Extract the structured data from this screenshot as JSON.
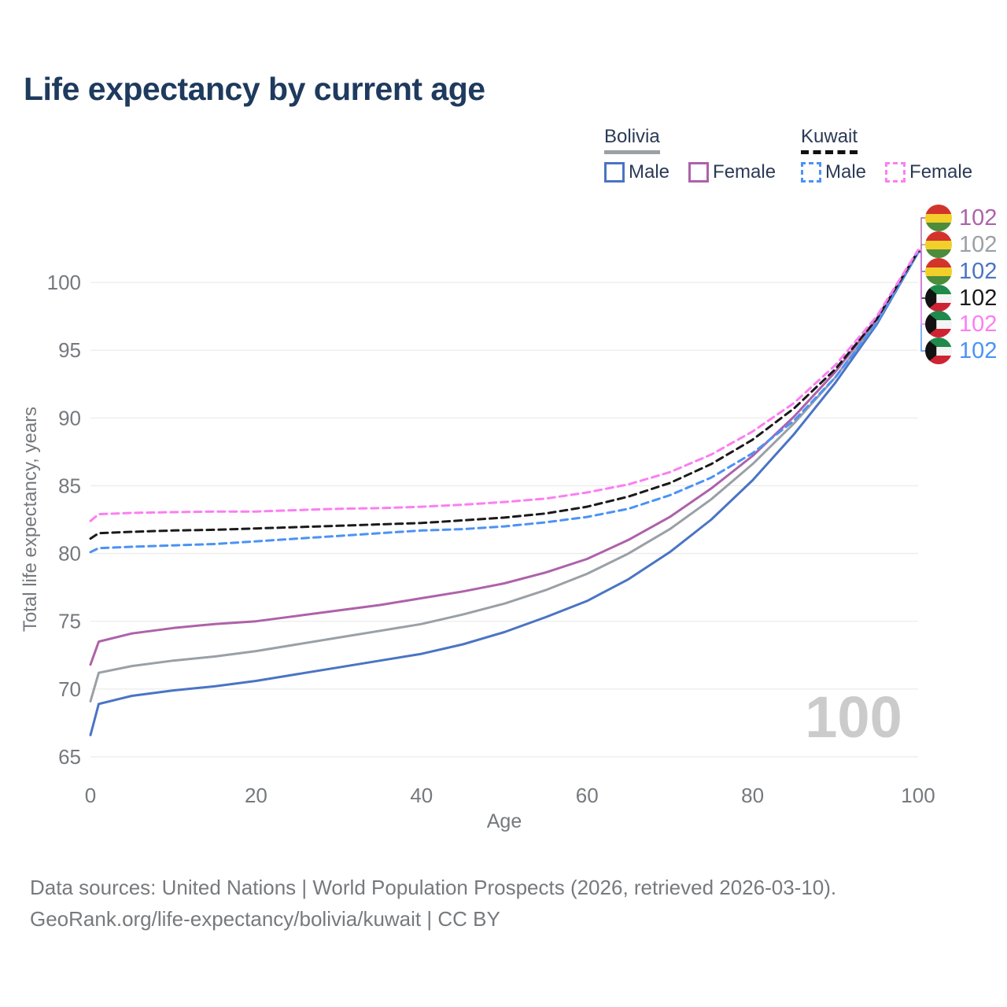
{
  "title": "Life expectancy by current age",
  "legend": {
    "groups": [
      {
        "name": "Bolivia",
        "underline": "solid",
        "items": [
          {
            "label": "Male",
            "swatch": "bolivia_male",
            "style": "solid"
          },
          {
            "label": "Female",
            "swatch": "bolivia_female",
            "style": "solid"
          }
        ]
      },
      {
        "name": "Kuwait",
        "underline": "dashed",
        "items": [
          {
            "label": "Male",
            "swatch": "kuwait_male",
            "style": "dashed"
          },
          {
            "label": "Female",
            "swatch": "kuwait_female",
            "style": "dashed"
          }
        ]
      }
    ]
  },
  "colors": {
    "bolivia_male": "#4a74c4",
    "bolivia_avg": "#9aa0a6",
    "bolivia_female": "#ad62a9",
    "kuwait_male": "#4b92f5",
    "kuwait_avg": "#1a1a1a",
    "kuwait_female": "#fc7ef2",
    "title": "#1e3a5e",
    "axis_text": "#75797e",
    "grid": "#ececec",
    "watermark": "#cbcbcb",
    "flag_bolivia_red": "#d2342c",
    "flag_bolivia_yellow": "#f2cf2b",
    "flag_bolivia_green": "#4c8c3c",
    "flag_kuwait_green": "#1f8a4c",
    "flag_kuwait_white": "#f4f4f4",
    "flag_kuwait_red": "#cf2333",
    "flag_kuwait_black": "#121212"
  },
  "chart_data": {
    "type": "line",
    "title": "Life expectancy by current age",
    "xlabel": "Age",
    "ylabel": "Total life expectancy, years",
    "xlim": [
      0,
      100
    ],
    "ylim": [
      65,
      103
    ],
    "xticks": [
      0,
      20,
      40,
      60,
      80,
      100
    ],
    "yticks": [
      65,
      70,
      75,
      80,
      85,
      90,
      95,
      100
    ],
    "grid": true,
    "legend_position": "top-right",
    "watermark": "100",
    "x": [
      0,
      1,
      5,
      10,
      15,
      20,
      25,
      30,
      35,
      40,
      45,
      50,
      55,
      60,
      65,
      70,
      75,
      80,
      85,
      90,
      95,
      100
    ],
    "series": [
      {
        "name": "Bolivia Male",
        "country": "Bolivia",
        "sex": "Male",
        "style": "solid",
        "color_key": "bolivia_male",
        "end_label": "102",
        "flag": "bolivia",
        "label_row": 2,
        "values": [
          66.6,
          68.9,
          69.5,
          69.9,
          70.2,
          70.6,
          71.1,
          71.6,
          72.1,
          72.6,
          73.3,
          74.2,
          75.3,
          76.5,
          78.1,
          80.1,
          82.5,
          85.4,
          88.8,
          92.6,
          96.9,
          102.2
        ]
      },
      {
        "name": "Bolivia (both sexes)",
        "country": "Bolivia",
        "sex": "Both",
        "style": "solid",
        "color_key": "bolivia_avg",
        "end_label": "102",
        "flag": "bolivia",
        "label_row": 1,
        "values": [
          69.1,
          71.2,
          71.7,
          72.1,
          72.4,
          72.8,
          73.3,
          73.8,
          74.3,
          74.8,
          75.5,
          76.3,
          77.3,
          78.5,
          80.0,
          81.8,
          84.0,
          86.6,
          89.6,
          93.0,
          97.1,
          102.25
        ]
      },
      {
        "name": "Bolivia Female",
        "country": "Bolivia",
        "sex": "Female",
        "style": "solid",
        "color_key": "bolivia_female",
        "end_label": "102",
        "flag": "bolivia",
        "label_row": 0,
        "values": [
          71.8,
          73.5,
          74.1,
          74.5,
          74.8,
          75.0,
          75.4,
          75.8,
          76.2,
          76.7,
          77.2,
          77.8,
          78.6,
          79.6,
          81.0,
          82.7,
          84.8,
          87.2,
          90.1,
          93.4,
          97.3,
          102.3
        ]
      },
      {
        "name": "Kuwait Male",
        "country": "Kuwait",
        "sex": "Male",
        "style": "dashed",
        "color_key": "kuwait_male",
        "end_label": "102",
        "flag": "kuwait",
        "label_row": 5,
        "values": [
          80.1,
          80.4,
          80.5,
          80.6,
          80.7,
          80.9,
          81.1,
          81.3,
          81.5,
          81.7,
          81.8,
          82.0,
          82.3,
          82.7,
          83.3,
          84.3,
          85.6,
          87.4,
          89.8,
          93.0,
          97.0,
          102.2
        ]
      },
      {
        "name": "Kuwait (both sexes)",
        "country": "Kuwait",
        "sex": "Both",
        "style": "dashed",
        "color_key": "kuwait_avg",
        "end_label": "102",
        "flag": "kuwait",
        "label_row": 3,
        "values": [
          81.1,
          81.5,
          81.6,
          81.7,
          81.75,
          81.85,
          81.95,
          82.05,
          82.15,
          82.25,
          82.45,
          82.65,
          82.95,
          83.45,
          84.2,
          85.2,
          86.6,
          88.4,
          90.7,
          93.6,
          97.3,
          102.3
        ]
      },
      {
        "name": "Kuwait Female",
        "country": "Kuwait",
        "sex": "Female",
        "style": "dashed",
        "color_key": "kuwait_female",
        "end_label": "102",
        "flag": "kuwait",
        "label_row": 4,
        "values": [
          82.4,
          82.9,
          83.0,
          83.05,
          83.1,
          83.1,
          83.2,
          83.3,
          83.35,
          83.45,
          83.6,
          83.8,
          84.05,
          84.5,
          85.1,
          86.0,
          87.3,
          89.0,
          91.1,
          93.9,
          97.5,
          102.4
        ]
      }
    ]
  },
  "footer": {
    "line1": "Data sources: United Nations | World Population Prospects (2026, retrieved 2026-03-10).",
    "line2": "GeoRank.org/life-expectancy/bolivia/kuwait | CC BY"
  }
}
